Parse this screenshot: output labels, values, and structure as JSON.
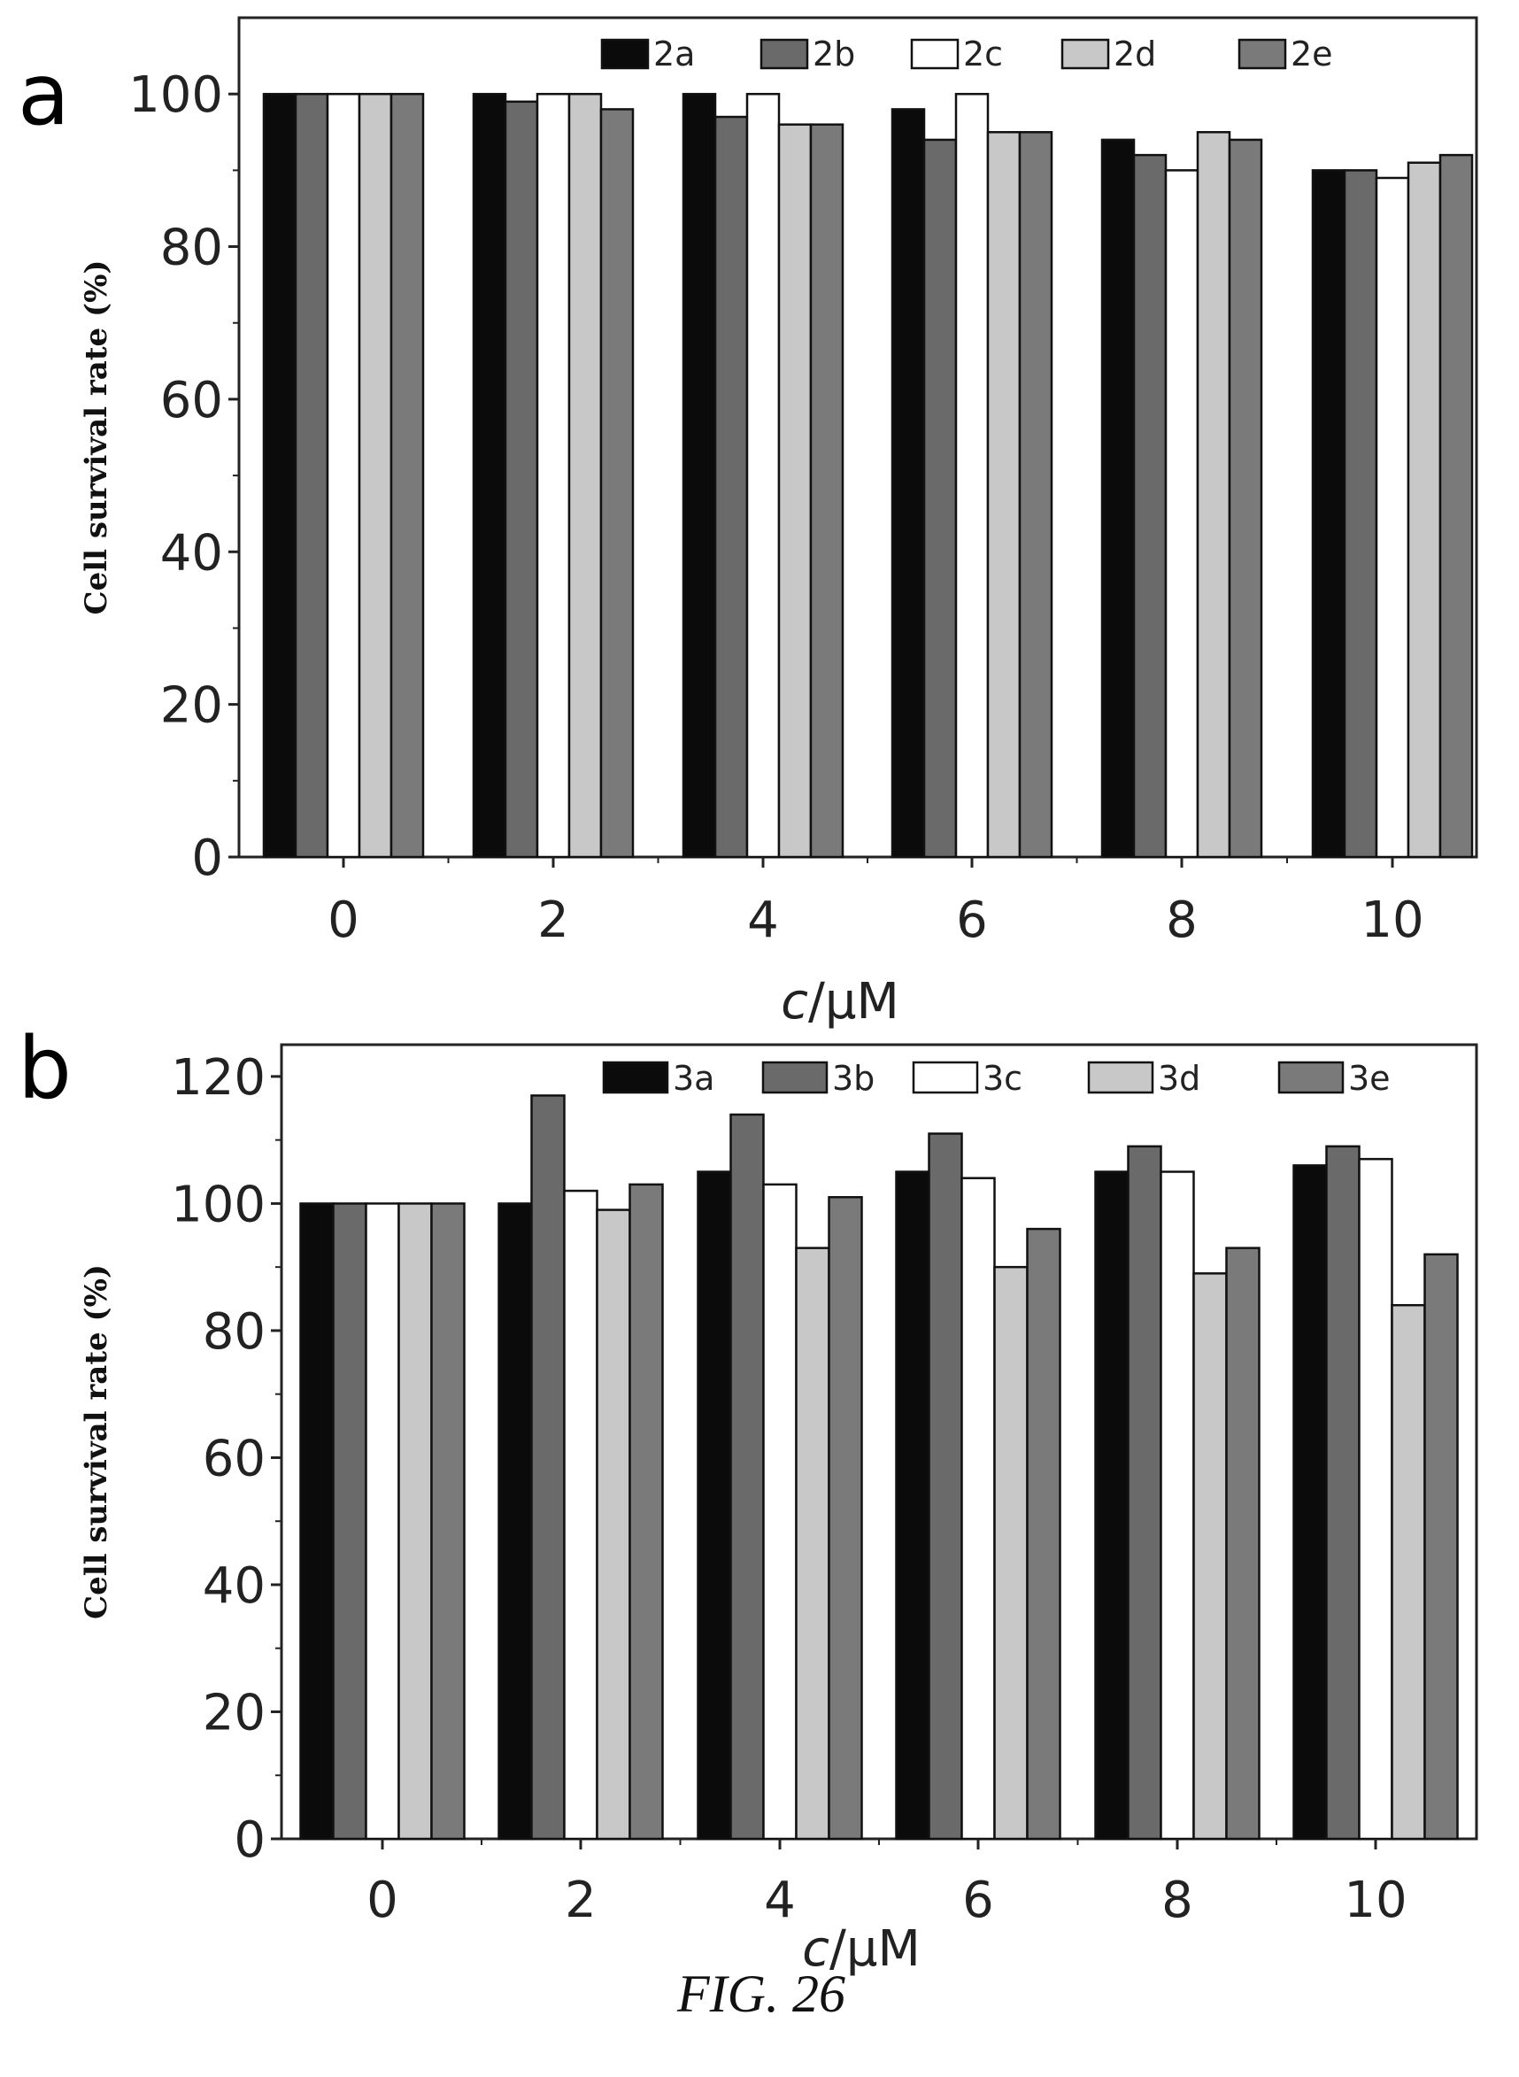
{
  "figure_caption": "FIG. 26",
  "colors": {
    "black": "#0b0b0b",
    "dark_gray": "#6a6a6a",
    "white": "#ffffff",
    "light_gray": "#c8c8c8",
    "mid_gray": "#7a7a7a",
    "axis": "#222222"
  },
  "chart_data": [
    {
      "panel_label": "a",
      "type": "bar",
      "categories": [
        "0",
        "2",
        "4",
        "6",
        "8",
        "10"
      ],
      "xlabel_var": "c",
      "xlabel_unit": "/μM",
      "ylabel": "Cell survival rate (%)",
      "ylim": [
        0,
        110
      ],
      "yticks": [
        0,
        20,
        40,
        60,
        80,
        100
      ],
      "grid": false,
      "legend_position": "top",
      "series": [
        {
          "name": "2a",
          "color_key": "black",
          "values": [
            100,
            100,
            100,
            98,
            94,
            90
          ]
        },
        {
          "name": "2b",
          "color_key": "dark_gray",
          "values": [
            100,
            99,
            97,
            94,
            92,
            90
          ]
        },
        {
          "name": "2c",
          "color_key": "white",
          "values": [
            100,
            100,
            100,
            100,
            90,
            89
          ]
        },
        {
          "name": "2d",
          "color_key": "light_gray",
          "values": [
            100,
            100,
            96,
            95,
            95,
            91
          ]
        },
        {
          "name": "2e",
          "color_key": "mid_gray",
          "values": [
            100,
            98,
            96,
            95,
            94,
            92
          ]
        }
      ]
    },
    {
      "panel_label": "b",
      "type": "bar",
      "categories": [
        "0",
        "2",
        "4",
        "6",
        "8",
        "10"
      ],
      "xlabel_var": "c",
      "xlabel_unit": "/μM",
      "ylabel": "Cell survival rate (%)",
      "ylim": [
        0,
        125
      ],
      "yticks": [
        0,
        20,
        40,
        60,
        80,
        100,
        120
      ],
      "grid": false,
      "legend_position": "top",
      "series": [
        {
          "name": "3a",
          "color_key": "black",
          "values": [
            100,
            100,
            105,
            105,
            105,
            106
          ]
        },
        {
          "name": "3b",
          "color_key": "dark_gray",
          "values": [
            100,
            117,
            114,
            111,
            109,
            109
          ]
        },
        {
          "name": "3c",
          "color_key": "white",
          "values": [
            100,
            102,
            103,
            104,
            105,
            107
          ]
        },
        {
          "name": "3d",
          "color_key": "light_gray",
          "values": [
            100,
            99,
            93,
            90,
            89,
            84
          ]
        },
        {
          "name": "3e",
          "color_key": "mid_gray",
          "values": [
            100,
            103,
            101,
            96,
            93,
            92
          ]
        }
      ]
    }
  ]
}
